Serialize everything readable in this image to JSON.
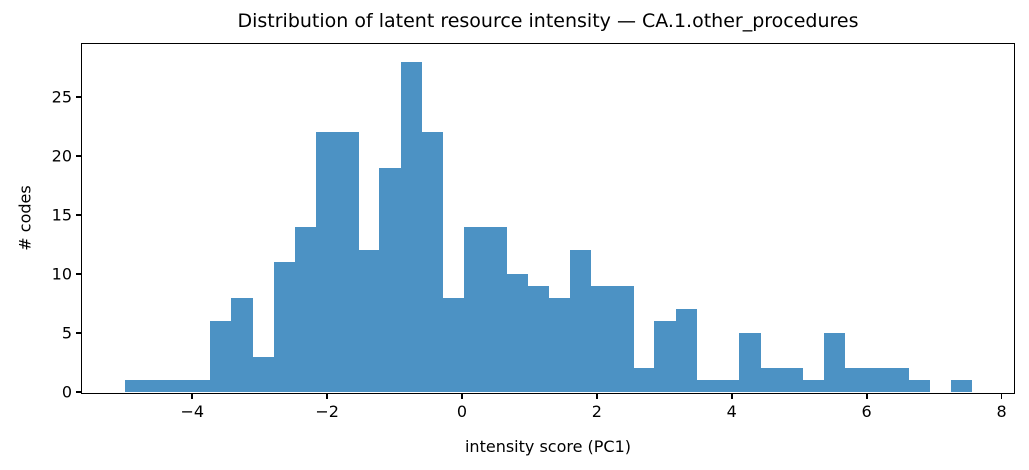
{
  "figure": {
    "title": "Distribution of latent resource intensity — CA.1.other_procedures",
    "xlabel": "intensity score (PC1)",
    "ylabel": "# codes"
  },
  "chart_data": {
    "type": "bar",
    "subtype": "histogram",
    "title": "Distribution of latent resource intensity — CA.1.other_procedures",
    "xlabel": "intensity score (PC1)",
    "ylabel": "# codes",
    "bar_color": "#4C92C4",
    "bin_start": -4.99,
    "bin_width": 0.31375,
    "bin_end": 7.56,
    "counts": [
      1,
      1,
      1,
      1,
      6,
      8,
      3,
      11,
      14,
      22,
      22,
      12,
      19,
      28,
      22,
      8,
      14,
      14,
      10,
      9,
      8,
      12,
      9,
      9,
      2,
      6,
      7,
      1,
      1,
      5,
      2,
      2,
      1,
      5,
      2,
      2,
      2,
      1,
      0,
      1
    ],
    "total_codes": 304,
    "xlim": [
      -5.62,
      8.17
    ],
    "ylim": [
      0,
      29.4
    ],
    "xticks": {
      "values": [
        -4,
        -2,
        0,
        2,
        4,
        6,
        8
      ],
      "labels": [
        "−4",
        "−2",
        "0",
        "2",
        "4",
        "6",
        "8"
      ]
    },
    "yticks": {
      "values": [
        0,
        5,
        10,
        15,
        20,
        25
      ],
      "labels": [
        "0",
        "5",
        "10",
        "15",
        "20",
        "25"
      ]
    },
    "grid": false,
    "legend": "none"
  }
}
